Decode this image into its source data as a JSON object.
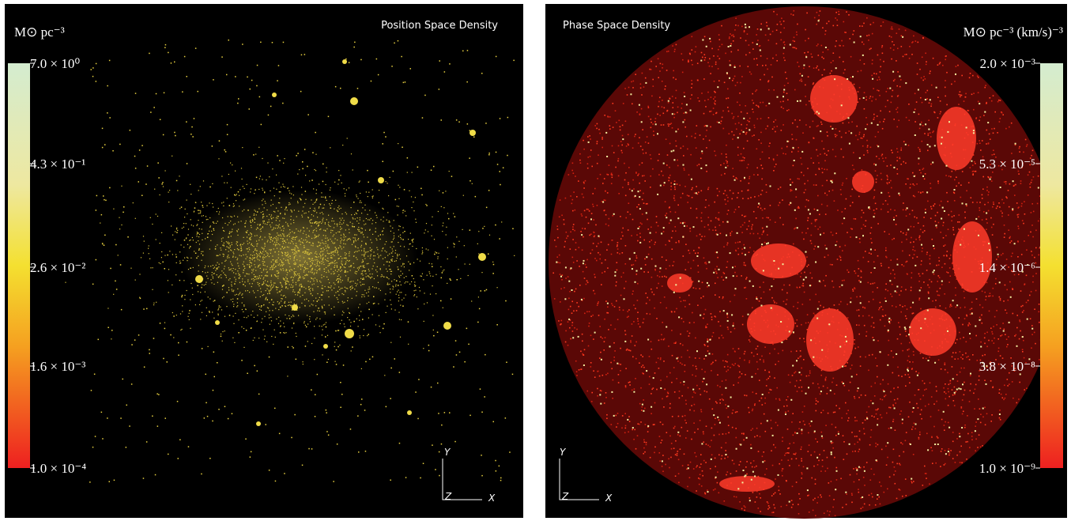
{
  "panels": [
    {
      "title": "Position Space Density",
      "unit": "M⊙ pc⁻³",
      "colorbar_labels": [
        "7.0 × 10⁰",
        "4.3 × 10⁻¹",
        "2.6 × 10⁻²",
        "1.6 × 10⁻³",
        "1.0 × 10⁻⁴"
      ],
      "axes": {
        "y": "Y",
        "z": "Z",
        "x": "X"
      }
    },
    {
      "title": "Phase Space Density",
      "unit": "M⊙ pc⁻³ (km/s)⁻³",
      "colorbar_labels": [
        "2.0 × 10⁻³",
        "5.3 × 10⁻⁵",
        "1.4 × 10⁻⁶",
        "3.8 × 10⁻⁸",
        "1.0 × 10⁻⁹"
      ],
      "axes": {
        "y": "Y",
        "z": "Z",
        "x": "X"
      }
    }
  ]
}
